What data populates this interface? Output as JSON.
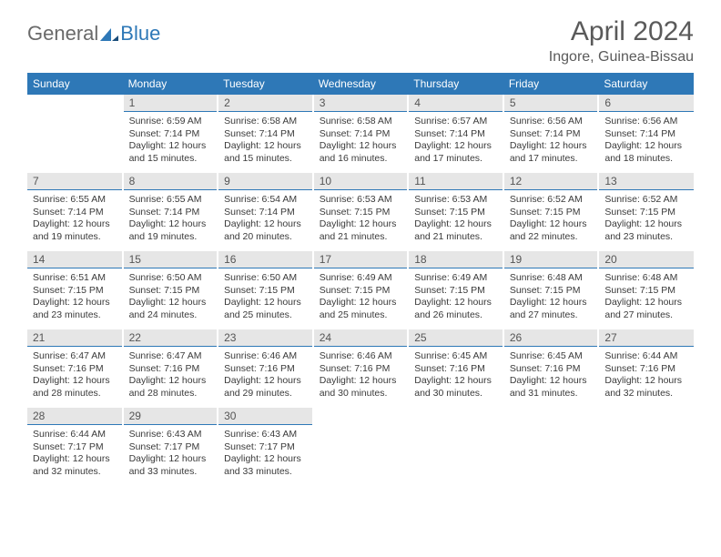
{
  "logo": {
    "general": "General",
    "blue": "Blue"
  },
  "title": "April 2024",
  "location": "Ingore, Guinea-Bissau",
  "colors": {
    "header_bg": "#2e78b7",
    "header_text": "#ffffff",
    "daynum_bg": "#e6e6e6",
    "daynum_border": "#2e78b7",
    "text": "#333333",
    "logo_gray": "#6a6a6a",
    "logo_blue": "#2e78b7"
  },
  "weekdays": [
    "Sunday",
    "Monday",
    "Tuesday",
    "Wednesday",
    "Thursday",
    "Friday",
    "Saturday"
  ],
  "weeks": [
    [
      null,
      {
        "n": "1",
        "sr": "6:59 AM",
        "ss": "7:14 PM",
        "dl": "12 hours and 15 minutes."
      },
      {
        "n": "2",
        "sr": "6:58 AM",
        "ss": "7:14 PM",
        "dl": "12 hours and 15 minutes."
      },
      {
        "n": "3",
        "sr": "6:58 AM",
        "ss": "7:14 PM",
        "dl": "12 hours and 16 minutes."
      },
      {
        "n": "4",
        "sr": "6:57 AM",
        "ss": "7:14 PM",
        "dl": "12 hours and 17 minutes."
      },
      {
        "n": "5",
        "sr": "6:56 AM",
        "ss": "7:14 PM",
        "dl": "12 hours and 17 minutes."
      },
      {
        "n": "6",
        "sr": "6:56 AM",
        "ss": "7:14 PM",
        "dl": "12 hours and 18 minutes."
      }
    ],
    [
      {
        "n": "7",
        "sr": "6:55 AM",
        "ss": "7:14 PM",
        "dl": "12 hours and 19 minutes."
      },
      {
        "n": "8",
        "sr": "6:55 AM",
        "ss": "7:14 PM",
        "dl": "12 hours and 19 minutes."
      },
      {
        "n": "9",
        "sr": "6:54 AM",
        "ss": "7:14 PM",
        "dl": "12 hours and 20 minutes."
      },
      {
        "n": "10",
        "sr": "6:53 AM",
        "ss": "7:15 PM",
        "dl": "12 hours and 21 minutes."
      },
      {
        "n": "11",
        "sr": "6:53 AM",
        "ss": "7:15 PM",
        "dl": "12 hours and 21 minutes."
      },
      {
        "n": "12",
        "sr": "6:52 AM",
        "ss": "7:15 PM",
        "dl": "12 hours and 22 minutes."
      },
      {
        "n": "13",
        "sr": "6:52 AM",
        "ss": "7:15 PM",
        "dl": "12 hours and 23 minutes."
      }
    ],
    [
      {
        "n": "14",
        "sr": "6:51 AM",
        "ss": "7:15 PM",
        "dl": "12 hours and 23 minutes."
      },
      {
        "n": "15",
        "sr": "6:50 AM",
        "ss": "7:15 PM",
        "dl": "12 hours and 24 minutes."
      },
      {
        "n": "16",
        "sr": "6:50 AM",
        "ss": "7:15 PM",
        "dl": "12 hours and 25 minutes."
      },
      {
        "n": "17",
        "sr": "6:49 AM",
        "ss": "7:15 PM",
        "dl": "12 hours and 25 minutes."
      },
      {
        "n": "18",
        "sr": "6:49 AM",
        "ss": "7:15 PM",
        "dl": "12 hours and 26 minutes."
      },
      {
        "n": "19",
        "sr": "6:48 AM",
        "ss": "7:15 PM",
        "dl": "12 hours and 27 minutes."
      },
      {
        "n": "20",
        "sr": "6:48 AM",
        "ss": "7:15 PM",
        "dl": "12 hours and 27 minutes."
      }
    ],
    [
      {
        "n": "21",
        "sr": "6:47 AM",
        "ss": "7:16 PM",
        "dl": "12 hours and 28 minutes."
      },
      {
        "n": "22",
        "sr": "6:47 AM",
        "ss": "7:16 PM",
        "dl": "12 hours and 28 minutes."
      },
      {
        "n": "23",
        "sr": "6:46 AM",
        "ss": "7:16 PM",
        "dl": "12 hours and 29 minutes."
      },
      {
        "n": "24",
        "sr": "6:46 AM",
        "ss": "7:16 PM",
        "dl": "12 hours and 30 minutes."
      },
      {
        "n": "25",
        "sr": "6:45 AM",
        "ss": "7:16 PM",
        "dl": "12 hours and 30 minutes."
      },
      {
        "n": "26",
        "sr": "6:45 AM",
        "ss": "7:16 PM",
        "dl": "12 hours and 31 minutes."
      },
      {
        "n": "27",
        "sr": "6:44 AM",
        "ss": "7:16 PM",
        "dl": "12 hours and 32 minutes."
      }
    ],
    [
      {
        "n": "28",
        "sr": "6:44 AM",
        "ss": "7:17 PM",
        "dl": "12 hours and 32 minutes."
      },
      {
        "n": "29",
        "sr": "6:43 AM",
        "ss": "7:17 PM",
        "dl": "12 hours and 33 minutes."
      },
      {
        "n": "30",
        "sr": "6:43 AM",
        "ss": "7:17 PM",
        "dl": "12 hours and 33 minutes."
      },
      null,
      null,
      null,
      null
    ]
  ],
  "labels": {
    "sunrise": "Sunrise:",
    "sunset": "Sunset:",
    "daylight": "Daylight:"
  }
}
